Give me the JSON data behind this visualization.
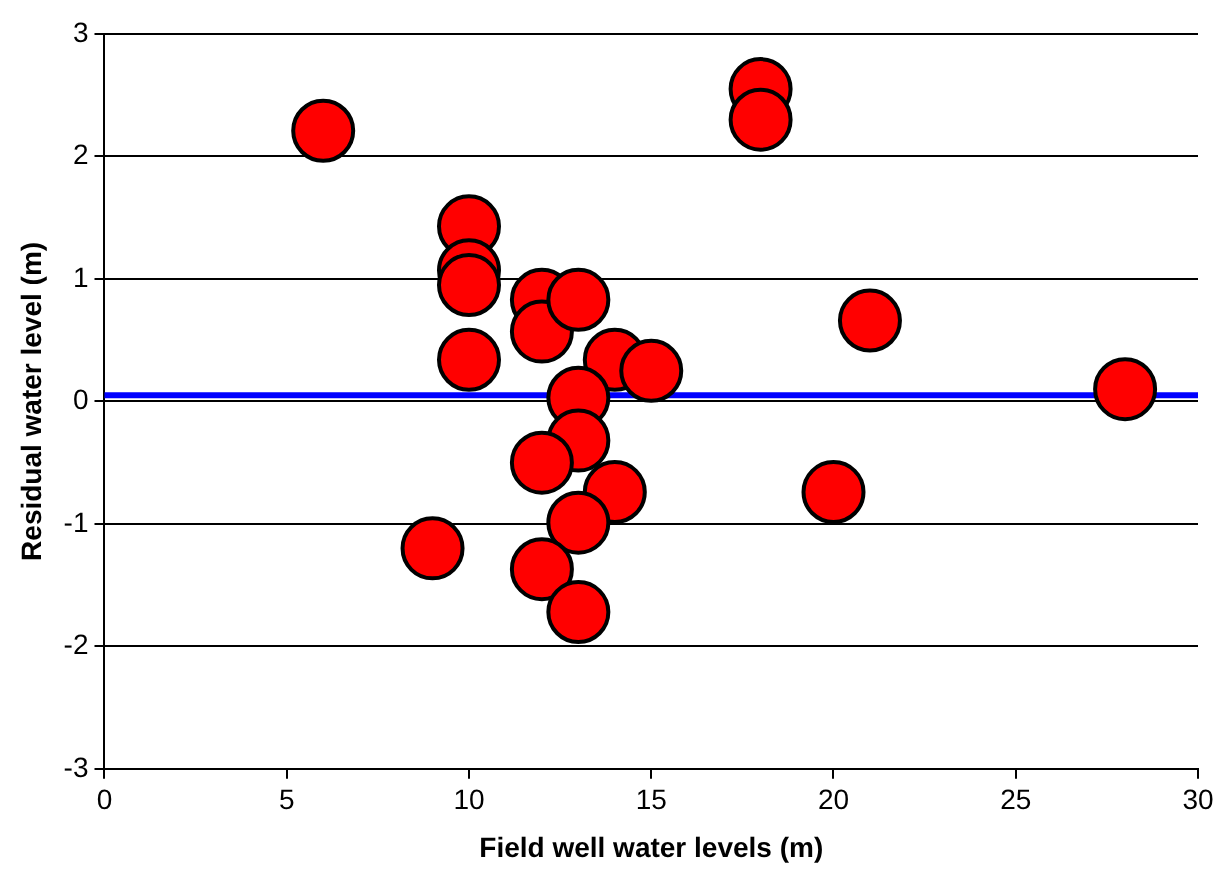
{
  "chart_data": {
    "type": "scatter",
    "xlabel": "Field well water levels (m)",
    "ylabel": "Residual water level (m)",
    "x": [
      6,
      18,
      18,
      10,
      10,
      10,
      10,
      12,
      12,
      13,
      14,
      15,
      21,
      28,
      13,
      13,
      12,
      14,
      13,
      9,
      12,
      13,
      20
    ],
    "series": [
      {
        "color": "#ff0000",
        "values": [
          2.21,
          2.55,
          2.3,
          1.43,
          1.07,
          0.95,
          0.34,
          0.83,
          0.57,
          0.83,
          0.34,
          0.25,
          0.66,
          0.1,
          0.03,
          -0.32,
          -0.5,
          -0.74,
          -0.99,
          -1.2,
          -1.37,
          -1.72,
          -0.74
        ]
      }
    ],
    "xlim": [
      0,
      30
    ],
    "xticks": [
      0,
      5,
      10,
      15,
      20,
      25,
      30
    ],
    "ylim": [
      -3,
      3
    ],
    "yticks": [
      -3,
      -2,
      -1,
      0,
      1,
      2,
      3
    ],
    "grid": "y",
    "marker": "circle",
    "legend": false,
    "ref_lines": [
      {
        "axis": "y",
        "value": 0.05,
        "color": "#0000ff"
      }
    ]
  }
}
